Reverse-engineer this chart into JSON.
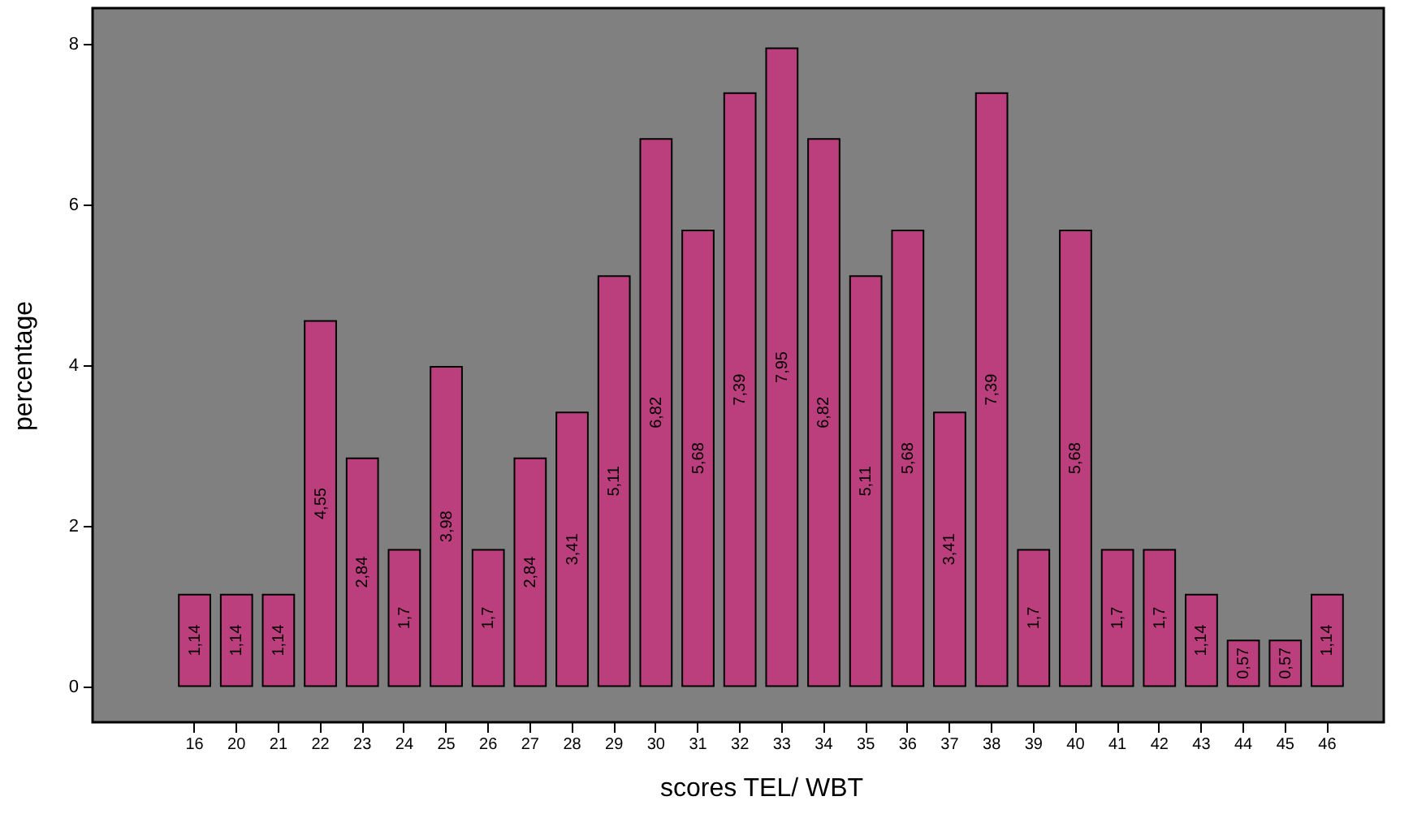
{
  "chart_data": {
    "type": "bar",
    "xlabel": "scores TEL/ WBT",
    "ylabel": "percentage",
    "categories": [
      "16",
      "20",
      "21",
      "22",
      "23",
      "24",
      "25",
      "26",
      "27",
      "28",
      "29",
      "30",
      "31",
      "32",
      "33",
      "34",
      "35",
      "36",
      "37",
      "38",
      "39",
      "40",
      "41",
      "42",
      "43",
      "44",
      "45",
      "46"
    ],
    "values": [
      1.14,
      1.14,
      1.14,
      4.55,
      2.84,
      1.7,
      3.98,
      1.7,
      2.84,
      3.41,
      5.11,
      6.82,
      5.68,
      7.39,
      7.95,
      6.82,
      5.11,
      5.68,
      3.41,
      7.39,
      1.7,
      5.68,
      1.7,
      1.7,
      1.14,
      0.57,
      0.57,
      1.14
    ],
    "value_labels": [
      "1,14",
      "1,14",
      "1,14",
      "4,55",
      "2,84",
      "1,7",
      "3,98",
      "1,7",
      "2,84",
      "3,41",
      "5,11",
      "6,82",
      "5,68",
      "7,39",
      "7,95",
      "6,82",
      "5,11",
      "5,68",
      "3,41",
      "7,39",
      "1,7",
      "5,68",
      "1,7",
      "1,7",
      "1,14",
      "0,57",
      "0,57",
      "1,14"
    ],
    "color": "#bb3f7c",
    "ylim": [
      -0.45,
      8.45
    ],
    "yticks": [
      0,
      2,
      4,
      6,
      8
    ],
    "grid": false
  }
}
